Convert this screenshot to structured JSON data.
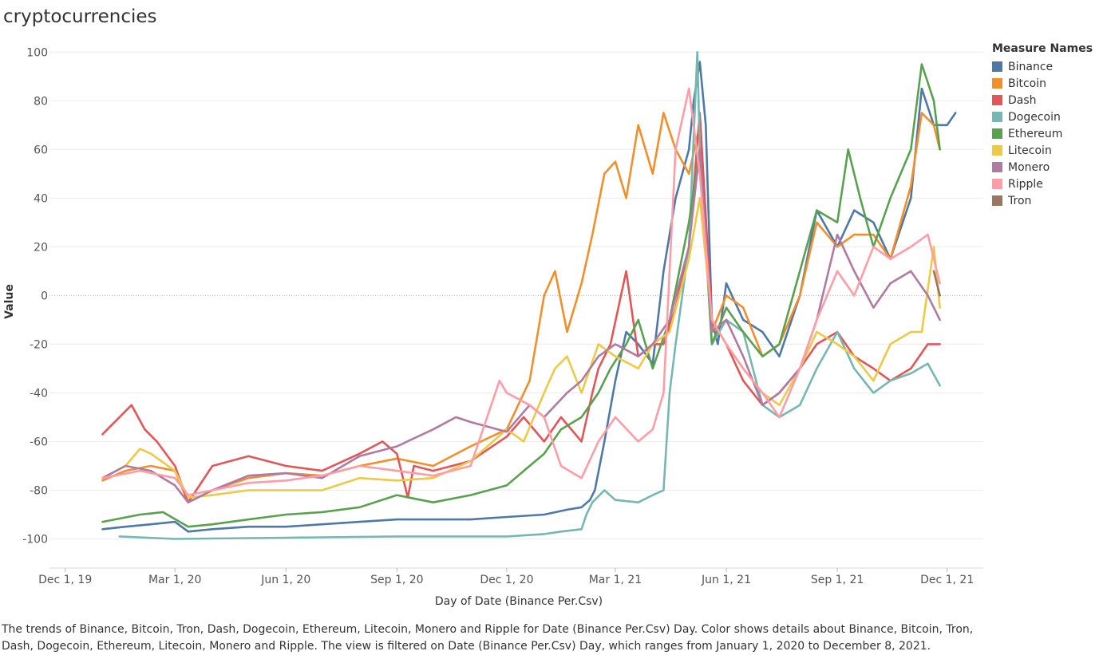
{
  "title": "cryptocurrencies",
  "caption": "The trends of Binance, Bitcoin, Tron, Dash, Dogecoin, Ethereum, Litecoin, Monero and Ripple for Date (Binance Per.Csv) Day.  Color shows details about Binance, Bitcoin, Tron, Dash, Dogecoin, Ethereum, Litecoin, Monero and Ripple. The view is filtered on Date (Binance Per.Csv) Day, which ranges from January 1, 2020 to December 8, 2021.",
  "legend_title": "Measure Names",
  "chart_data": {
    "type": "line",
    "title": "cryptocurrencies",
    "xlabel": "Day of Date (Binance Per.Csv)",
    "ylabel": "Value",
    "ylim": [
      -110,
      105
    ],
    "yticks": [
      100,
      80,
      60,
      40,
      20,
      0,
      -20,
      -40,
      -60,
      -80,
      -100
    ],
    "xticks": [
      {
        "date": "2019-12-01",
        "label": "Dec 1, 19"
      },
      {
        "date": "2020-03-01",
        "label": "Mar 1, 20"
      },
      {
        "date": "2020-06-01",
        "label": "Jun 1, 20"
      },
      {
        "date": "2020-09-01",
        "label": "Sep 1, 20"
      },
      {
        "date": "2020-12-01",
        "label": "Dec 1, 20"
      },
      {
        "date": "2021-03-01",
        "label": "Mar 1, 21"
      },
      {
        "date": "2021-06-01",
        "label": "Jun 1, 21"
      },
      {
        "date": "2021-09-01",
        "label": "Sep 1, 21"
      },
      {
        "date": "2021-12-01",
        "label": "Dec 1, 21"
      }
    ],
    "xlim": [
      "2019-11-18",
      "2021-12-31"
    ],
    "grid": true,
    "zero_line": true,
    "legend_position": "right",
    "series": [
      {
        "name": "Binance",
        "color": "#4e79a7",
        "x": [
          "2020-01-01",
          "2020-01-20",
          "2020-02-10",
          "2020-03-01",
          "2020-03-12",
          "2020-04-01",
          "2020-05-01",
          "2020-06-01",
          "2020-07-01",
          "2020-08-01",
          "2020-09-01",
          "2020-10-01",
          "2020-11-01",
          "2020-12-01",
          "2021-01-01",
          "2021-01-20",
          "2021-02-01",
          "2021-02-08",
          "2021-02-12",
          "2021-02-20",
          "2021-03-01",
          "2021-03-10",
          "2021-03-20",
          "2021-04-01",
          "2021-04-10",
          "2021-04-20",
          "2021-05-01",
          "2021-05-05",
          "2021-05-10",
          "2021-05-15",
          "2021-05-20",
          "2021-05-25",
          "2021-06-01",
          "2021-06-15",
          "2021-07-01",
          "2021-07-15",
          "2021-08-01",
          "2021-08-15",
          "2021-09-01",
          "2021-09-15",
          "2021-10-01",
          "2021-10-15",
          "2021-11-01",
          "2021-11-10",
          "2021-11-20",
          "2021-12-01",
          "2021-12-08"
        ],
        "values": [
          -96,
          -95,
          -94,
          -93,
          -97,
          -96,
          -95,
          -95,
          -94,
          -93,
          -92,
          -92,
          -92,
          -91,
          -90,
          -88,
          -87,
          -84,
          -80,
          -60,
          -35,
          -15,
          -20,
          -28,
          10,
          40,
          60,
          80,
          96,
          70,
          -10,
          -20,
          5,
          -10,
          -15,
          -25,
          0,
          35,
          20,
          35,
          30,
          15,
          40,
          85,
          70,
          70,
          75
        ]
      },
      {
        "name": "Bitcoin",
        "color": "#f28e2b",
        "x": [
          "2020-01-01",
          "2020-01-20",
          "2020-02-10",
          "2020-03-01",
          "2020-03-12",
          "2020-04-01",
          "2020-05-01",
          "2020-06-01",
          "2020-07-01",
          "2020-08-01",
          "2020-09-01",
          "2020-10-01",
          "2020-11-01",
          "2020-12-01",
          "2020-12-20",
          "2021-01-01",
          "2021-01-10",
          "2021-01-20",
          "2021-02-01",
          "2021-02-10",
          "2021-02-20",
          "2021-03-01",
          "2021-03-10",
          "2021-03-20",
          "2021-04-01",
          "2021-04-10",
          "2021-04-20",
          "2021-05-01",
          "2021-05-10",
          "2021-05-20",
          "2021-06-01",
          "2021-06-15",
          "2021-07-01",
          "2021-07-15",
          "2021-08-01",
          "2021-08-15",
          "2021-09-01",
          "2021-09-15",
          "2021-10-01",
          "2021-10-15",
          "2021-11-01",
          "2021-11-10",
          "2021-11-20",
          "2021-11-25"
        ],
        "values": [
          -76,
          -72,
          -70,
          -72,
          -85,
          -80,
          -75,
          -73,
          -74,
          -70,
          -67,
          -70,
          -62,
          -55,
          -35,
          0,
          10,
          -15,
          5,
          25,
          50,
          55,
          40,
          70,
          50,
          75,
          60,
          50,
          70,
          -15,
          0,
          -5,
          -25,
          -20,
          0,
          30,
          20,
          25,
          25,
          15,
          45,
          75,
          70,
          60
        ]
      },
      {
        "name": "Dash",
        "color": "#e15759",
        "x": [
          "2020-01-01",
          "2020-01-15",
          "2020-01-25",
          "2020-02-05",
          "2020-02-15",
          "2020-03-01",
          "2020-03-12",
          "2020-04-01",
          "2020-05-01",
          "2020-06-01",
          "2020-07-01",
          "2020-08-01",
          "2020-08-20",
          "2020-09-01",
          "2020-09-10",
          "2020-09-15",
          "2020-10-01",
          "2020-11-01",
          "2020-12-01",
          "2020-12-15",
          "2021-01-01",
          "2021-01-15",
          "2021-02-01",
          "2021-02-10",
          "2021-02-15",
          "2021-02-25",
          "2021-03-10",
          "2021-03-20",
          "2021-04-01",
          "2021-04-10",
          "2021-04-20",
          "2021-05-01",
          "2021-05-10",
          "2021-05-20",
          "2021-06-01",
          "2021-06-15",
          "2021-07-01",
          "2021-07-15",
          "2021-08-01",
          "2021-08-15",
          "2021-09-01",
          "2021-09-15",
          "2021-10-01",
          "2021-10-15",
          "2021-11-01",
          "2021-11-15",
          "2021-11-25"
        ],
        "values": [
          -57,
          -50,
          -45,
          -55,
          -60,
          -70,
          -85,
          -70,
          -66,
          -70,
          -72,
          -65,
          -60,
          -65,
          -83,
          -70,
          -72,
          -68,
          -58,
          -50,
          -60,
          -50,
          -60,
          -40,
          -30,
          -20,
          10,
          -25,
          -20,
          -20,
          -5,
          20,
          75,
          -10,
          -20,
          -35,
          -45,
          -40,
          -30,
          -20,
          -15,
          -25,
          -30,
          -35,
          -30,
          -20,
          -20
        ]
      },
      {
        "name": "Dogecoin",
        "color": "#76b7b2",
        "x": [
          "2020-01-15",
          "2020-03-01",
          "2020-06-01",
          "2020-09-01",
          "2020-12-01",
          "2021-01-01",
          "2021-01-15",
          "2021-02-01",
          "2021-02-05",
          "2021-02-10",
          "2021-02-20",
          "2021-03-01",
          "2021-03-20",
          "2021-04-01",
          "2021-04-10",
          "2021-04-15",
          "2021-04-20",
          "2021-05-01",
          "2021-05-08",
          "2021-05-10",
          "2021-05-20",
          "2021-06-01",
          "2021-06-15",
          "2021-07-01",
          "2021-07-15",
          "2021-08-01",
          "2021-08-15",
          "2021-09-01",
          "2021-09-15",
          "2021-10-01",
          "2021-10-15",
          "2021-11-01",
          "2021-11-15",
          "2021-11-25"
        ],
        "values": [
          -99,
          -100,
          -99.5,
          -99,
          -99,
          -98,
          -97,
          -96,
          -90,
          -85,
          -80,
          -84,
          -85,
          -82,
          -80,
          -40,
          -20,
          20,
          100,
          60,
          -20,
          -10,
          -15,
          -45,
          -50,
          -45,
          -30,
          -15,
          -30,
          -40,
          -35,
          -32,
          -28,
          -37
        ]
      },
      {
        "name": "Ethereum",
        "color": "#59a14f",
        "x": [
          "2020-01-01",
          "2020-02-01",
          "2020-02-20",
          "2020-03-12",
          "2020-04-01",
          "2020-05-01",
          "2020-06-01",
          "2020-07-01",
          "2020-08-01",
          "2020-09-01",
          "2020-10-01",
          "2020-11-01",
          "2020-12-01",
          "2020-12-20",
          "2021-01-01",
          "2021-01-15",
          "2021-02-01",
          "2021-02-15",
          "2021-02-25",
          "2021-03-10",
          "2021-03-20",
          "2021-04-01",
          "2021-04-15",
          "2021-05-01",
          "2021-05-10",
          "2021-05-15",
          "2021-05-20",
          "2021-06-01",
          "2021-06-15",
          "2021-07-01",
          "2021-07-15",
          "2021-08-01",
          "2021-08-15",
          "2021-09-01",
          "2021-09-10",
          "2021-09-20",
          "2021-10-01",
          "2021-10-15",
          "2021-11-01",
          "2021-11-10",
          "2021-11-20",
          "2021-11-25"
        ],
        "values": [
          -93,
          -90,
          -89,
          -95,
          -94,
          -92,
          -90,
          -89,
          -87,
          -82,
          -85,
          -82,
          -78,
          -70,
          -65,
          -55,
          -50,
          -40,
          -30,
          -20,
          -10,
          -30,
          -10,
          30,
          60,
          20,
          -20,
          -5,
          -15,
          -25,
          -20,
          10,
          35,
          30,
          60,
          40,
          20,
          40,
          60,
          95,
          80,
          60
        ]
      },
      {
        "name": "Litecoin",
        "color": "#edc948",
        "x": [
          "2020-01-01",
          "2020-01-20",
          "2020-02-01",
          "2020-02-10",
          "2020-03-01",
          "2020-03-12",
          "2020-04-01",
          "2020-05-01",
          "2020-06-01",
          "2020-07-01",
          "2020-08-01",
          "2020-09-01",
          "2020-10-01",
          "2020-11-01",
          "2020-12-01",
          "2020-12-15",
          "2021-01-01",
          "2021-01-10",
          "2021-01-20",
          "2021-02-01",
          "2021-02-15",
          "2021-03-01",
          "2021-03-20",
          "2021-04-01",
          "2021-04-15",
          "2021-05-01",
          "2021-05-10",
          "2021-05-20",
          "2021-06-01",
          "2021-06-15",
          "2021-07-01",
          "2021-07-15",
          "2021-08-01",
          "2021-08-15",
          "2021-09-01",
          "2021-09-15",
          "2021-10-01",
          "2021-10-15",
          "2021-11-01",
          "2021-11-10",
          "2021-11-20",
          "2021-11-25"
        ],
        "values": [
          -75,
          -70,
          -63,
          -65,
          -72,
          -83,
          -82,
          -80,
          -80,
          -80,
          -75,
          -76,
          -75,
          -68,
          -55,
          -60,
          -40,
          -30,
          -25,
          -40,
          -20,
          -25,
          -30,
          -20,
          -15,
          15,
          40,
          -10,
          -20,
          -30,
          -40,
          -45,
          -30,
          -15,
          -20,
          -25,
          -35,
          -20,
          -15,
          -15,
          20,
          -5
        ]
      },
      {
        "name": "Monero",
        "color": "#b07aa1",
        "x": [
          "2020-01-01",
          "2020-01-20",
          "2020-02-10",
          "2020-03-01",
          "2020-03-12",
          "2020-04-01",
          "2020-05-01",
          "2020-06-01",
          "2020-07-01",
          "2020-08-01",
          "2020-09-01",
          "2020-10-01",
          "2020-10-20",
          "2020-11-01",
          "2020-12-01",
          "2020-12-20",
          "2021-01-01",
          "2021-01-20",
          "2021-02-01",
          "2021-02-15",
          "2021-03-01",
          "2021-03-20",
          "2021-04-01",
          "2021-04-15",
          "2021-05-01",
          "2021-05-10",
          "2021-05-20",
          "2021-06-01",
          "2021-06-15",
          "2021-07-01",
          "2021-07-15",
          "2021-08-01",
          "2021-08-15",
          "2021-09-01",
          "2021-09-15",
          "2021-10-01",
          "2021-10-15",
          "2021-11-01",
          "2021-11-15",
          "2021-11-25"
        ],
        "values": [
          -75,
          -70,
          -72,
          -78,
          -85,
          -80,
          -74,
          -73,
          -75,
          -66,
          -62,
          -55,
          -50,
          -52,
          -56,
          -45,
          -50,
          -40,
          -35,
          -25,
          -20,
          -25,
          -20,
          -10,
          20,
          60,
          -15,
          -10,
          -25,
          -45,
          -40,
          -30,
          -10,
          25,
          10,
          -5,
          5,
          10,
          0,
          -10
        ]
      },
      {
        "name": "Ripple",
        "color": "#ff9da7",
        "x": [
          "2020-01-01",
          "2020-02-01",
          "2020-03-01",
          "2020-03-12",
          "2020-04-01",
          "2020-05-01",
          "2020-06-01",
          "2020-07-01",
          "2020-08-01",
          "2020-09-01",
          "2020-10-01",
          "2020-11-01",
          "2020-11-25",
          "2020-12-01",
          "2020-12-20",
          "2021-01-01",
          "2021-01-15",
          "2021-02-01",
          "2021-02-15",
          "2021-03-01",
          "2021-03-20",
          "2021-04-01",
          "2021-04-10",
          "2021-04-20",
          "2021-05-01",
          "2021-05-10",
          "2021-05-20",
          "2021-06-01",
          "2021-06-15",
          "2021-07-01",
          "2021-07-15",
          "2021-08-01",
          "2021-08-15",
          "2021-09-01",
          "2021-09-15",
          "2021-10-01",
          "2021-10-15",
          "2021-11-01",
          "2021-11-15",
          "2021-11-25"
        ],
        "values": [
          -75,
          -72,
          -75,
          -82,
          -80,
          -77,
          -76,
          -74,
          -70,
          -72,
          -74,
          -70,
          -35,
          -40,
          -45,
          -50,
          -70,
          -75,
          -60,
          -50,
          -60,
          -55,
          -40,
          60,
          85,
          50,
          -10,
          -20,
          -30,
          -40,
          -50,
          -30,
          -10,
          10,
          0,
          20,
          15,
          20,
          25,
          5
        ]
      },
      {
        "name": "Tron",
        "color": "#9c755f",
        "x": [
          "2021-11-20",
          "2021-11-25"
        ],
        "values": [
          10,
          0
        ]
      }
    ]
  }
}
